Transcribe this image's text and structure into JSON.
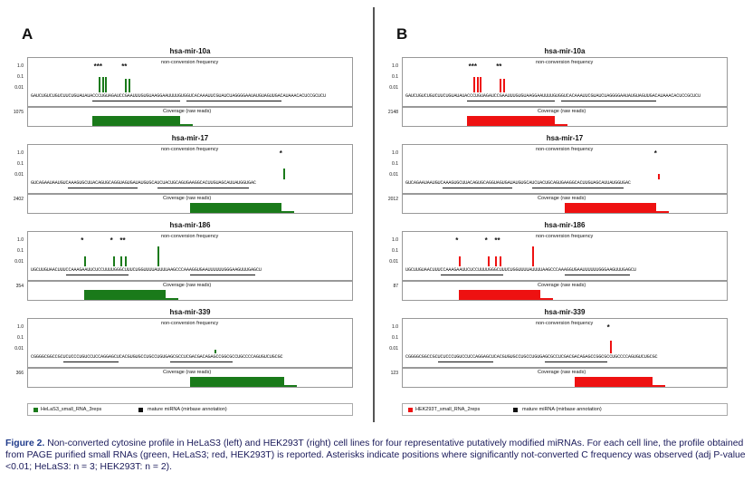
{
  "panels": [
    {
      "letter": "A",
      "color": "#1a7a1a",
      "legend_label": "HeLaS3_small_RNA_3reps"
    },
    {
      "letter": "B",
      "color": "#ee1111",
      "legend_label": "HEK293T_small_RNA_2reps"
    }
  ],
  "legend_mature": "mature miRNA (mirbase annotation)",
  "ncf_label": "non-conversion frequency",
  "coverage_label": "Coverage (raw reads)",
  "y_ticks": [
    "1.0",
    "0.1",
    "0.01"
  ],
  "mirnas": [
    {
      "name": "hsa-mir-10a",
      "seq": "GAUCUGUCUGUCUUCUGUAUAUACCCUGUAGAUCCGAAUUUGUGUAAGGAAUUUUGUGGUCACAAAUUCGUAUCUAGGGGAAUAUGUAGUUGACAUAAACACUCCGCUCU",
      "asterisks_A": [
        "***",
        "**"
      ],
      "asterisks_B": [
        "***",
        "**"
      ],
      "coverage_A": "1075",
      "coverage_B": "2148"
    },
    {
      "name": "hsa-mir-17",
      "seq": "GUCAGAAUAAUGUCAAAGUGCUUACAGUGCAGGUAGUGAUAUGUGCAUCUACUGCAGUGAAGGCACUUGUAGCAUUAUGGUGAC",
      "asterisks_A": [
        "*"
      ],
      "asterisks_B": [
        "*"
      ],
      "coverage_A": "2402",
      "coverage_B": "2012"
    },
    {
      "name": "hsa-mir-186",
      "seq": "UGCUUGUAACUUUCCAAAGAAUUCUCCUUUUGGGCUUUCUGGUUUUAUUUUAAGCCCAAAGGUGAAUUUUUUGGGAAGUUUGAGCU",
      "asterisks_A": [
        "*",
        "*",
        "**"
      ],
      "asterisks_B": [
        "*",
        "*",
        "**"
      ],
      "coverage_A": "354",
      "coverage_B": "87"
    },
    {
      "name": "hsa-mir-339",
      "seq": "CGGGGCGGCCGCUCUCCCUGUCCUCCAGGAGCUCACGUGUGCCUGCCUGUGAGCGCCUCGACGACAGAGCCGGCGCCUGCCCCAGUGUCUGCGC",
      "asterisks_A": [],
      "asterisks_B": [
        "*"
      ],
      "coverage_A": "366",
      "coverage_B": "123"
    }
  ],
  "caption": {
    "figure_label": "Figure 2.",
    "text": "Non-converted cytosine profile in HeLaS3 (left) and HEK293T (right) cell lines for four representative putatively modified miRNAs. For each cell line, the profile obtained from PAGE purified small RNAs (green, HeLaS3; red, HEK293T) is reported. Asterisks indicate positions where significantly not-converted C frequency was observed (adj P-value <0.01; HeLaS3: n = 3; HEK293T: n = 2)."
  }
}
